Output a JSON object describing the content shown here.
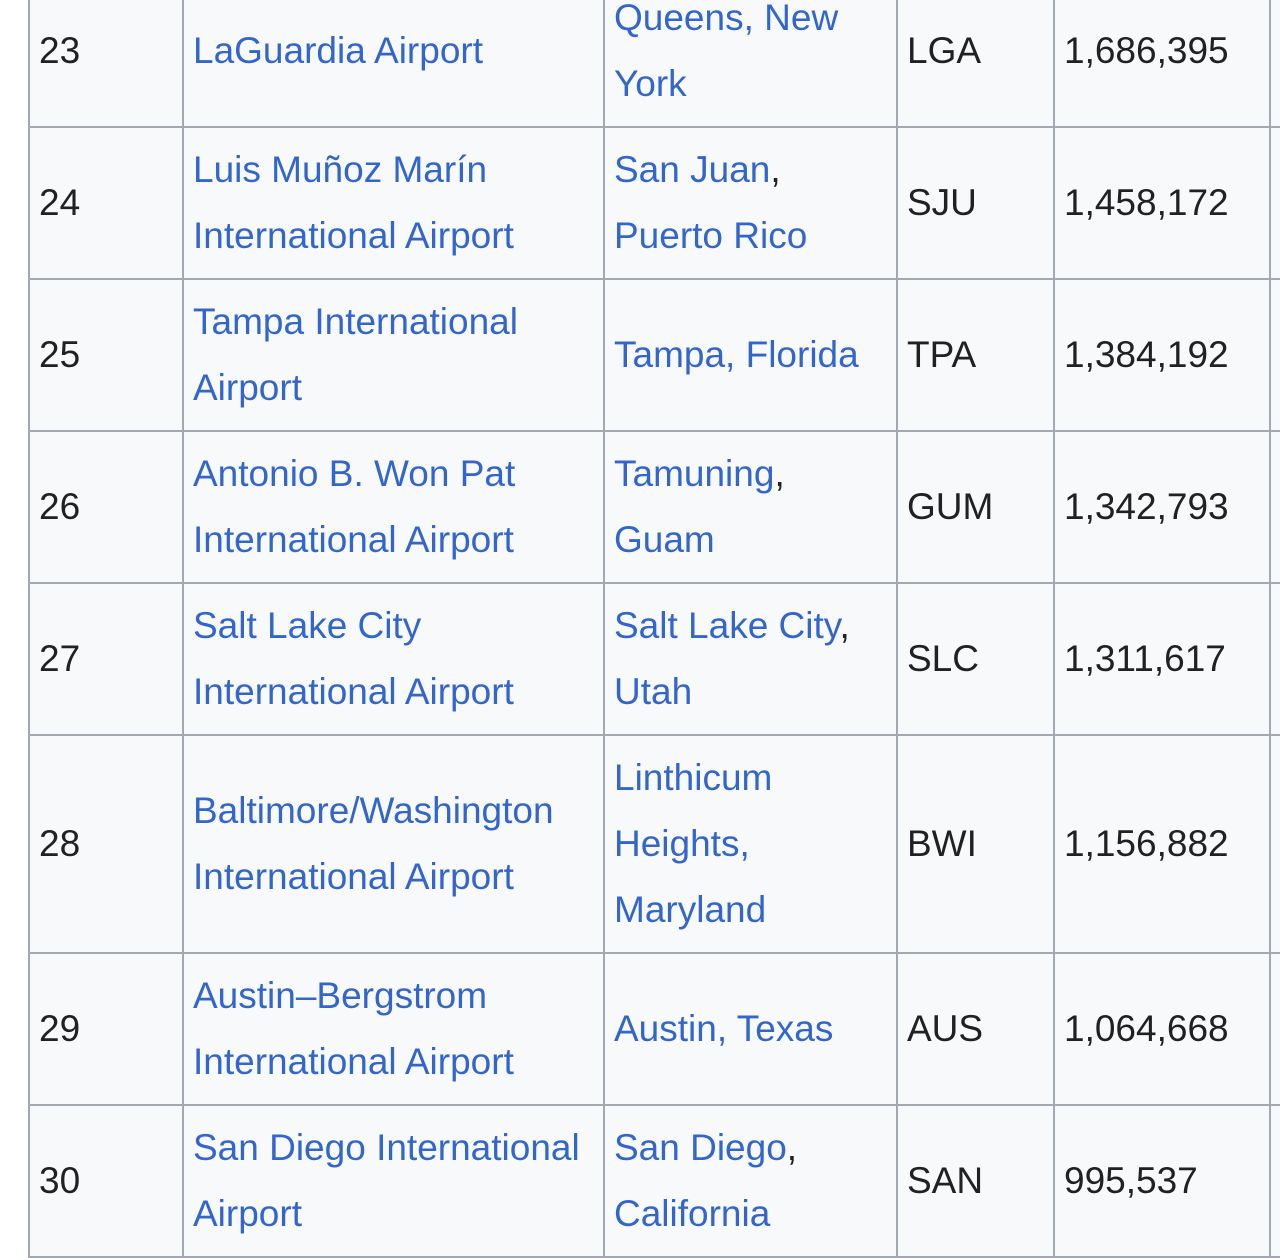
{
  "table": {
    "rows": [
      {
        "rank": "23",
        "airport": "LaGuardia Airport",
        "location": "Queens, New York",
        "location_link": "Queens, New York",
        "location_suffix": "",
        "code": "LGA",
        "passengers": "1,686,395"
      },
      {
        "rank": "24",
        "airport": "Luis Muñoz Marín International Airport",
        "location_link": "San Juan",
        "location_suffix": ", Puerto Rico",
        "code": "SJU",
        "passengers": "1,458,172"
      },
      {
        "rank": "25",
        "airport": "Tampa International Airport",
        "location_link": "Tampa, Florida",
        "location_suffix": "",
        "code": "TPA",
        "passengers": "1,384,192"
      },
      {
        "rank": "26",
        "airport": "Antonio B. Won Pat International Airport",
        "location_link": "Tamuning",
        "location_suffix": ", Guam",
        "code": "GUM",
        "passengers": "1,342,793"
      },
      {
        "rank": "27",
        "airport": "Salt Lake City International Airport",
        "location_link": "Salt Lake City",
        "location_suffix": ", Utah",
        "code": "SLC",
        "passengers": "1,311,617"
      },
      {
        "rank": "28",
        "airport": "Baltimore/Washington International Airport",
        "location_link": "Linthicum Heights, Maryland",
        "location_suffix": "",
        "code": "BWI",
        "passengers": "1,156,882"
      },
      {
        "rank": "29",
        "airport": "Austin–Bergstrom International Airport",
        "location_link": "Austin, Texas",
        "location_suffix": "",
        "code": "AUS",
        "passengers": "1,064,668"
      },
      {
        "rank": "30",
        "airport": "San Diego International Airport",
        "location_link": "San Diego",
        "location_suffix": ", California",
        "code": "SAN",
        "passengers": "995,537"
      }
    ]
  },
  "colors": {
    "link": "#3366cc",
    "text": "#202122",
    "border": "#a2a9b1",
    "row_bg": "#f8f9fa"
  }
}
